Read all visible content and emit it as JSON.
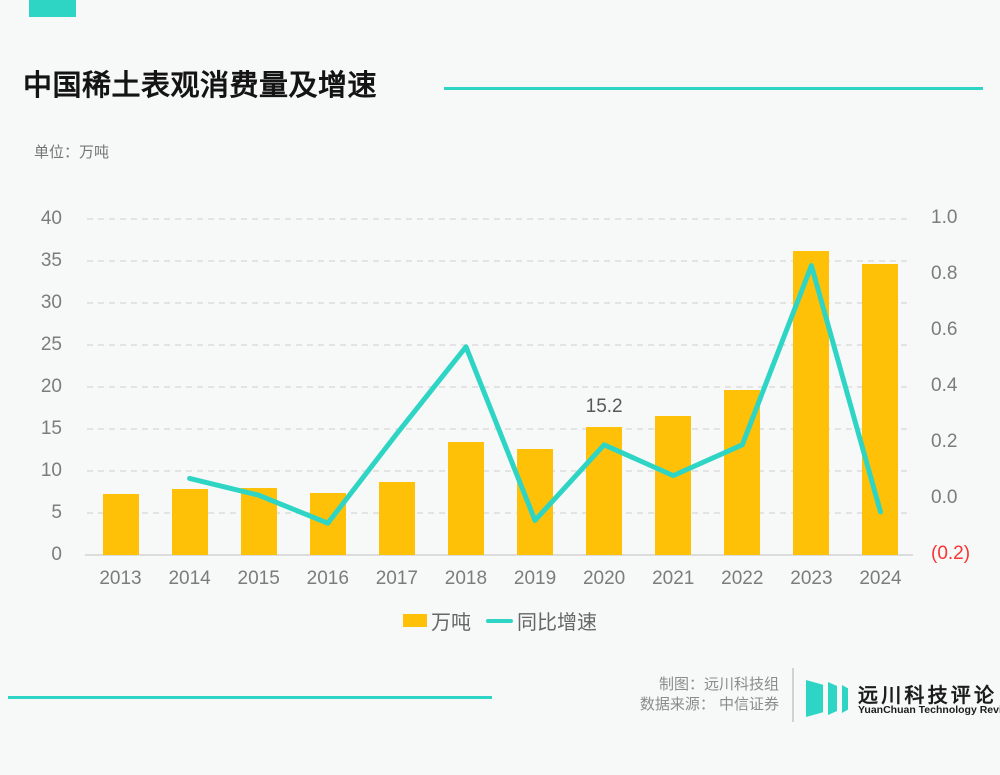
{
  "colors": {
    "teal": "#2ed5c4",
    "yellow": "#ffc107",
    "red": "#fb3434"
  },
  "header": {
    "title": "中国稀土表观消费量及增速",
    "unit_label": "单位：万吨"
  },
  "chart_data": {
    "type": "bar",
    "combo": "bar + line, dual axis",
    "categories": [
      "2013",
      "2014",
      "2015",
      "2016",
      "2017",
      "2018",
      "2019",
      "2020",
      "2021",
      "2022",
      "2023",
      "2024"
    ],
    "series": [
      {
        "name": "万吨",
        "type": "bar",
        "axis": "left",
        "values": [
          7.3,
          7.9,
          8.0,
          7.4,
          8.7,
          13.5,
          12.6,
          15.2,
          16.5,
          19.7,
          36.2,
          34.6
        ]
      },
      {
        "name": "同比增速",
        "type": "line",
        "axis": "right",
        "values": [
          null,
          0.07,
          0.01,
          -0.09,
          0.23,
          0.54,
          -0.08,
          0.19,
          0.08,
          0.19,
          0.83,
          -0.05
        ]
      }
    ],
    "left_axis": {
      "ticks": [
        40,
        35,
        30,
        25,
        20,
        15,
        10,
        5,
        0
      ],
      "range": [
        0,
        40
      ]
    },
    "right_axis": {
      "tick_labels": [
        "1.0",
        "0.8",
        "0.6",
        "0.4",
        "0.2",
        "0.0",
        "(0.2)"
      ],
      "tick_values": [
        1.0,
        0.8,
        0.6,
        0.4,
        0.2,
        0.0,
        -0.2
      ],
      "range": [
        -0.2,
        1.0
      ]
    },
    "annotations": [
      {
        "category": "2020",
        "text": "15.2"
      }
    ],
    "grid": "horizontal dashed",
    "legend_position": "bottom-center",
    "title": "中国稀土表观消费量及增速",
    "ylabel_left": "万吨",
    "ylabel_right": "同比增速"
  },
  "legend": {
    "items": [
      {
        "label": "万吨",
        "swatch": "bar"
      },
      {
        "label": "同比增速",
        "swatch": "line"
      }
    ]
  },
  "footer": {
    "credit_line1": "制图：远川科技组",
    "credit_line2": "数据来源： 中信证券",
    "logo_title": "远川科技评论",
    "logo_subtitle": "YuanChuan Technology Review"
  }
}
